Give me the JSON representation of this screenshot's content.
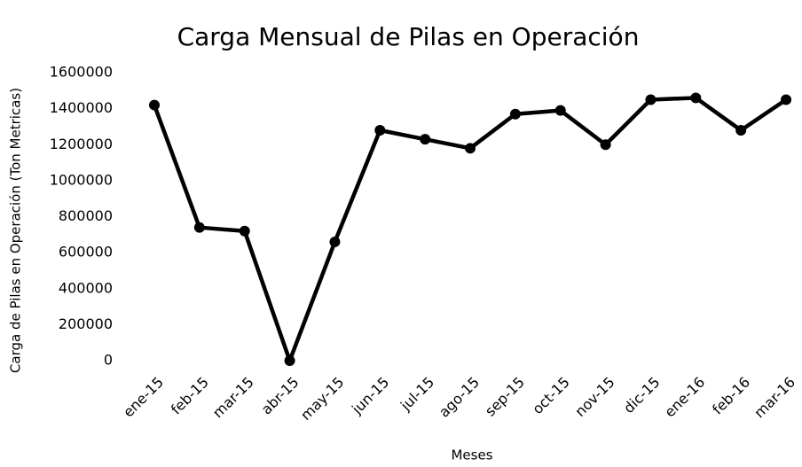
{
  "chart_data": {
    "type": "line",
    "title": "Carga Mensual de Pilas en Operación",
    "x_label": "Meses",
    "y_label": "Carga de Pilas en Operación (Ton Metricas)",
    "categories": [
      "ene-15",
      "feb-15",
      "mar-15",
      "abr-15",
      "may-15",
      "jun-15",
      "jul-15",
      "ago-15",
      "sep-15",
      "oct-15",
      "nov-15",
      "dic-15",
      "ene-16",
      "feb-16",
      "mar-16"
    ],
    "values": [
      1420000,
      740000,
      720000,
      0,
      660000,
      1280000,
      1230000,
      1180000,
      1370000,
      1390000,
      1200000,
      1450000,
      1460000,
      1280000,
      1450000
    ],
    "color": "#000000",
    "ylim": [
      0,
      1600000
    ],
    "yticks": [
      0,
      200000,
      400000,
      600000,
      800000,
      1000000,
      1200000,
      1400000,
      1600000
    ],
    "grid": false
  }
}
